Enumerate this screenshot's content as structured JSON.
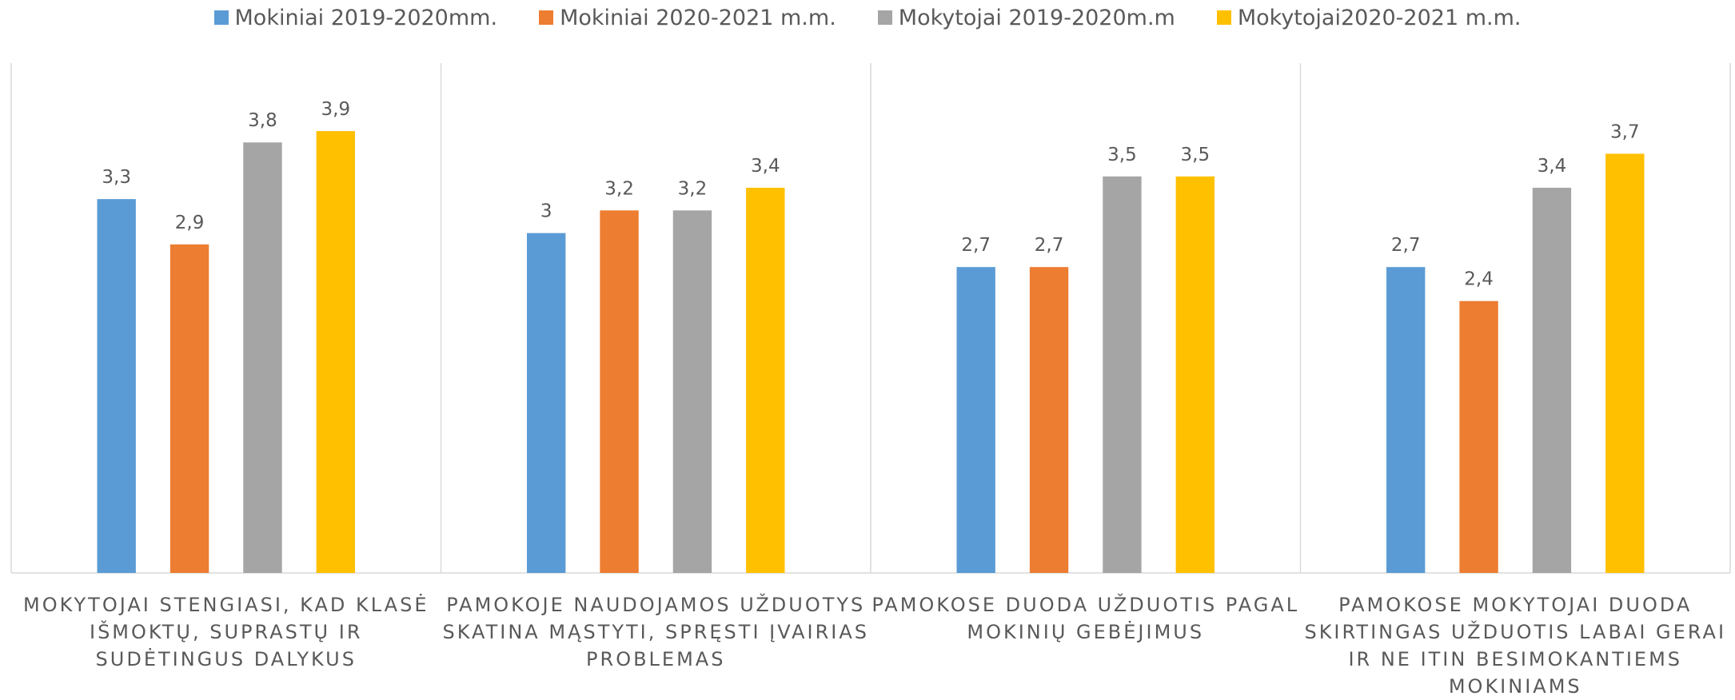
{
  "chart_data": {
    "type": "bar",
    "categories": [
      "MOKYTOJAI STENGIASI, KAD KLASĖ IŠMOKTŲ, SUPRASTŲ IR SUDĖTINGUS DALYKUS",
      "PAMOKOJE NAUDOJAMOS UŽDUOTYS SKATINA MĄSTYTI, SPRĘSTI ĮVAIRIAS PROBLEMAS",
      "PAMOKOSE DUODA UŽDUOTIS PAGAL MOKINIŲ GEBĖJIMUS",
      "PAMOKOSE MOKYTOJAI DUODA SKIRTINGAS UŽDUOTIS LABAI GERAI IR NE ITIN BESIMOKANTIEMS MOKINIAMS"
    ],
    "series": [
      {
        "name": "Mokiniai 2019-2020mm.",
        "color": "#5b9bd5",
        "values": [
          3.3,
          3,
          2.7,
          2.7
        ],
        "value_labels": [
          "3,3",
          "3",
          "2,7",
          "2,7"
        ]
      },
      {
        "name": "Mokiniai 2020-2021 m.m.",
        "color": "#ed7d31",
        "values": [
          2.9,
          3.2,
          2.7,
          2.4
        ],
        "value_labels": [
          "2,9",
          "3,2",
          "2,7",
          "2,4"
        ]
      },
      {
        "name": "Mokytojai 2019-2020m.m",
        "color": "#a5a5a5",
        "values": [
          3.8,
          3.2,
          3.5,
          3.4
        ],
        "value_labels": [
          "3,8",
          "3,2",
          "3,5",
          "3,4"
        ]
      },
      {
        "name": "Mokytojai2020-2021 m.m.",
        "color": "#ffc000",
        "values": [
          3.9,
          3.4,
          3.5,
          3.7
        ],
        "value_labels": [
          "3,9",
          "3,4",
          "3,5",
          "3,7"
        ]
      }
    ],
    "ylim": [
      0,
      4.5
    ],
    "legend": "top"
  }
}
